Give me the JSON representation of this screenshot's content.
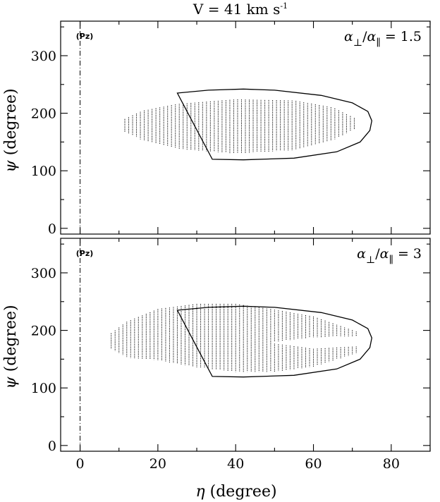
{
  "title": {
    "prefix": "V = 41 km s",
    "superscript": "-1"
  },
  "x_axis": {
    "symbol": "η",
    "label_rest": " (degree)",
    "ticks": [
      0,
      20,
      40,
      60,
      80
    ]
  },
  "y_axis": {
    "symbol": "ψ",
    "label_rest": " (degree)",
    "ticks": [
      0,
      100,
      200,
      300
    ]
  },
  "chart_data": [
    {
      "type": "line",
      "panel": "top",
      "x_range": [
        -5,
        90
      ],
      "y_range": [
        -10,
        360
      ],
      "tag": "(Pz)",
      "ratio_label": {
        "num_sub": "⊥",
        "den_sub": "∥",
        "value": "1.5"
      },
      "reference_line_x": 0,
      "contour": [
        [
          25,
          235
        ],
        [
          34,
          120
        ],
        [
          42,
          119
        ],
        [
          55,
          122
        ],
        [
          66,
          133
        ],
        [
          72,
          150
        ],
        [
          74.5,
          170
        ],
        [
          75,
          187
        ],
        [
          74,
          203
        ],
        [
          70,
          218
        ],
        [
          62,
          231
        ],
        [
          50,
          240
        ],
        [
          42,
          242
        ],
        [
          33,
          240
        ],
        [
          25,
          235
        ]
      ],
      "hatched_region": {
        "x": [
          11.5,
          71
        ],
        "top": [
          [
            11.5,
            190
          ],
          [
            16,
            204
          ],
          [
            25,
            216
          ],
          [
            40,
            224
          ],
          [
            55,
            222
          ],
          [
            65,
            210
          ],
          [
            71,
            190
          ]
        ],
        "bottom": [
          [
            11.5,
            168
          ],
          [
            16,
            153
          ],
          [
            25,
            138
          ],
          [
            40,
            130
          ],
          [
            55,
            136
          ],
          [
            65,
            153
          ],
          [
            71,
            174
          ]
        ]
      }
    },
    {
      "type": "line",
      "panel": "bottom",
      "x_range": [
        -5,
        90
      ],
      "y_range": [
        -10,
        360
      ],
      "tag": "(Pz)",
      "ratio_label": {
        "num_sub": "⊥",
        "den_sub": "∥",
        "value": "3"
      },
      "reference_line_x": 0,
      "contour": [
        [
          25,
          235
        ],
        [
          34,
          120
        ],
        [
          42,
          119
        ],
        [
          55,
          122
        ],
        [
          66,
          133
        ],
        [
          72,
          150
        ],
        [
          74.5,
          170
        ],
        [
          75,
          187
        ],
        [
          74,
          203
        ],
        [
          70,
          218
        ],
        [
          62,
          231
        ],
        [
          50,
          240
        ],
        [
          42,
          242
        ],
        [
          33,
          240
        ],
        [
          25,
          235
        ]
      ],
      "hatched_region": {
        "x": [
          8,
          71
        ],
        "top": [
          [
            8,
            195
          ],
          [
            12,
            215
          ],
          [
            20,
            237
          ],
          [
            30,
            246
          ],
          [
            40,
            246
          ],
          [
            50,
            236
          ],
          [
            60,
            224
          ],
          [
            71,
            198
          ]
        ],
        "bottom": [
          [
            8,
            168
          ],
          [
            12,
            153
          ],
          [
            20,
            148
          ],
          [
            30,
            136
          ],
          [
            40,
            128
          ],
          [
            50,
            128
          ],
          [
            60,
            137
          ],
          [
            71,
            160
          ]
        ],
        "gap": {
          "x": [
            50,
            71
          ],
          "top": [
            [
              50,
              180
            ],
            [
              60,
              188
            ],
            [
              71,
              190
            ]
          ],
          "bottom": [
            [
              50,
              177
            ],
            [
              60,
              168
            ],
            [
              71,
              172
            ]
          ]
        }
      }
    }
  ]
}
